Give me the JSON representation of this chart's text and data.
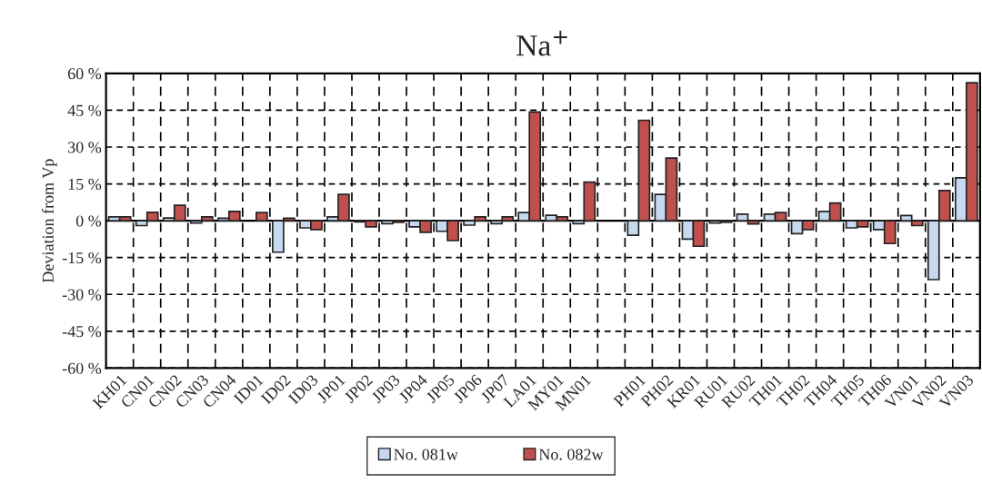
{
  "chart_data": {
    "type": "bar",
    "title": "Na$^{+}$",
    "ylabel": "Deviation from Vp",
    "categories": [
      "KH01",
      "CN01",
      "CN02",
      "CN03",
      "CN04",
      "ID01",
      "ID02",
      "ID03",
      "JP01",
      "JP02",
      "JP03",
      "JP04",
      "JP05",
      "JP06",
      "JP07",
      "LA01",
      "MY01",
      "MN01",
      null,
      "PH01",
      "PH02",
      "KR01",
      "RU01",
      "RU02",
      "TH01",
      "TH02",
      "TH04",
      "TH05",
      "TH06",
      "VN01",
      "VN02",
      "VN03"
    ],
    "series": [
      {
        "name": "No. 081w",
        "color": "#c6d9f0",
        "values": [
          1.6,
          -2.0,
          1.1,
          -0.9,
          1.0,
          null,
          -12.8,
          -2.9,
          1.6,
          -0.5,
          -1.2,
          -2.5,
          -4.3,
          -1.8,
          -1.2,
          3.3,
          2.2,
          -1.2,
          null,
          -5.9,
          10.7,
          -7.5,
          -0.9,
          2.7,
          2.7,
          -5.3,
          3.8,
          -2.9,
          -3.6,
          2.1,
          -24.0,
          17.5
        ]
      },
      {
        "name": "No. 082w",
        "color": "#c0504d",
        "values": [
          1.6,
          3.4,
          6.3,
          1.6,
          3.8,
          3.3,
          1.0,
          -3.6,
          10.7,
          -2.5,
          -0.7,
          -4.7,
          -8.1,
          1.6,
          1.6,
          44.3,
          1.6,
          15.7,
          null,
          40.9,
          25.5,
          -10.4,
          -0.7,
          -1.3,
          3.3,
          -3.6,
          7.2,
          -2.5,
          -9.3,
          -2.0,
          12.3,
          56.2
        ]
      }
    ],
    "ylim": [
      -60,
      60
    ],
    "yticks": [
      {
        "value": -60,
        "label": "-60 %"
      },
      {
        "value": -45,
        "label": "-45 %"
      },
      {
        "value": -30,
        "label": "-30 %"
      },
      {
        "value": -15,
        "label": "-15 %"
      },
      {
        "value": 0,
        "label": "0 %"
      },
      {
        "value": 15,
        "label": "15 %"
      },
      {
        "value": 30,
        "label": "30 %"
      },
      {
        "value": 45,
        "label": "45 %"
      },
      {
        "value": 60,
        "label": "60 %"
      }
    ],
    "grid": true,
    "legend": "bottom"
  }
}
